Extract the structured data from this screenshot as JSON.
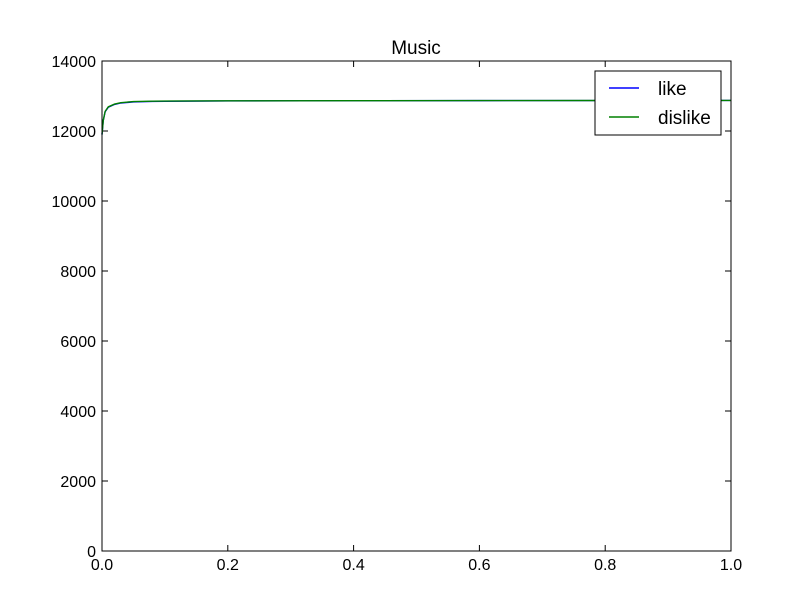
{
  "chart_data": {
    "type": "line",
    "title": "Music",
    "xlabel": "",
    "ylabel": "",
    "xlim": [
      0.0,
      1.0
    ],
    "ylim": [
      0,
      14000
    ],
    "x_ticks": [
      "0.0",
      "0.2",
      "0.4",
      "0.6",
      "0.8",
      "1.0"
    ],
    "y_ticks": [
      "0",
      "2000",
      "4000",
      "6000",
      "8000",
      "10000",
      "12000",
      "14000"
    ],
    "grid": false,
    "legend_position": "top-right",
    "series": [
      {
        "name": "like",
        "color": "#0000ff",
        "x": [
          0.0,
          0.002,
          0.005,
          0.01,
          0.02,
          0.03,
          0.05,
          0.08,
          0.1,
          0.2,
          0.4,
          0.6,
          0.8,
          1.0
        ],
        "y": [
          11900,
          12300,
          12550,
          12680,
          12760,
          12800,
          12830,
          12845,
          12850,
          12860,
          12865,
          12868,
          12870,
          12872
        ]
      },
      {
        "name": "dislike",
        "color": "#008000",
        "x": [
          0.0,
          0.002,
          0.005,
          0.01,
          0.02,
          0.03,
          0.05,
          0.08,
          0.1,
          0.2,
          0.4,
          0.6,
          0.8,
          1.0
        ],
        "y": [
          11900,
          12300,
          12560,
          12690,
          12770,
          12810,
          12840,
          12852,
          12856,
          12862,
          12866,
          12869,
          12871,
          12873
        ]
      }
    ]
  }
}
